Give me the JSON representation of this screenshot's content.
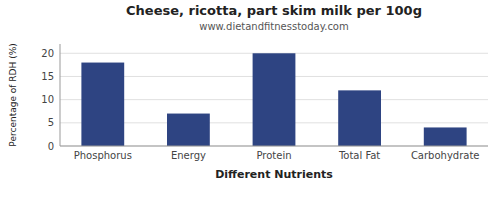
{
  "chart_data": {
    "type": "bar",
    "title": "Cheese, ricotta, part skim milk per 100g",
    "subtitle": "www.dietandfitnesstoday.com",
    "xlabel": "Different Nutrients",
    "ylabel": "Percentage of RDH (%)",
    "categories": [
      "Phosphorus",
      "Energy",
      "Protein",
      "Total Fat",
      "Carbohydrate"
    ],
    "values": [
      18,
      7,
      20,
      12,
      4
    ],
    "color": "#2e4482",
    "ylim": [
      0,
      22
    ],
    "yticks": [
      0,
      5,
      10,
      15,
      20
    ],
    "grid": true
  }
}
